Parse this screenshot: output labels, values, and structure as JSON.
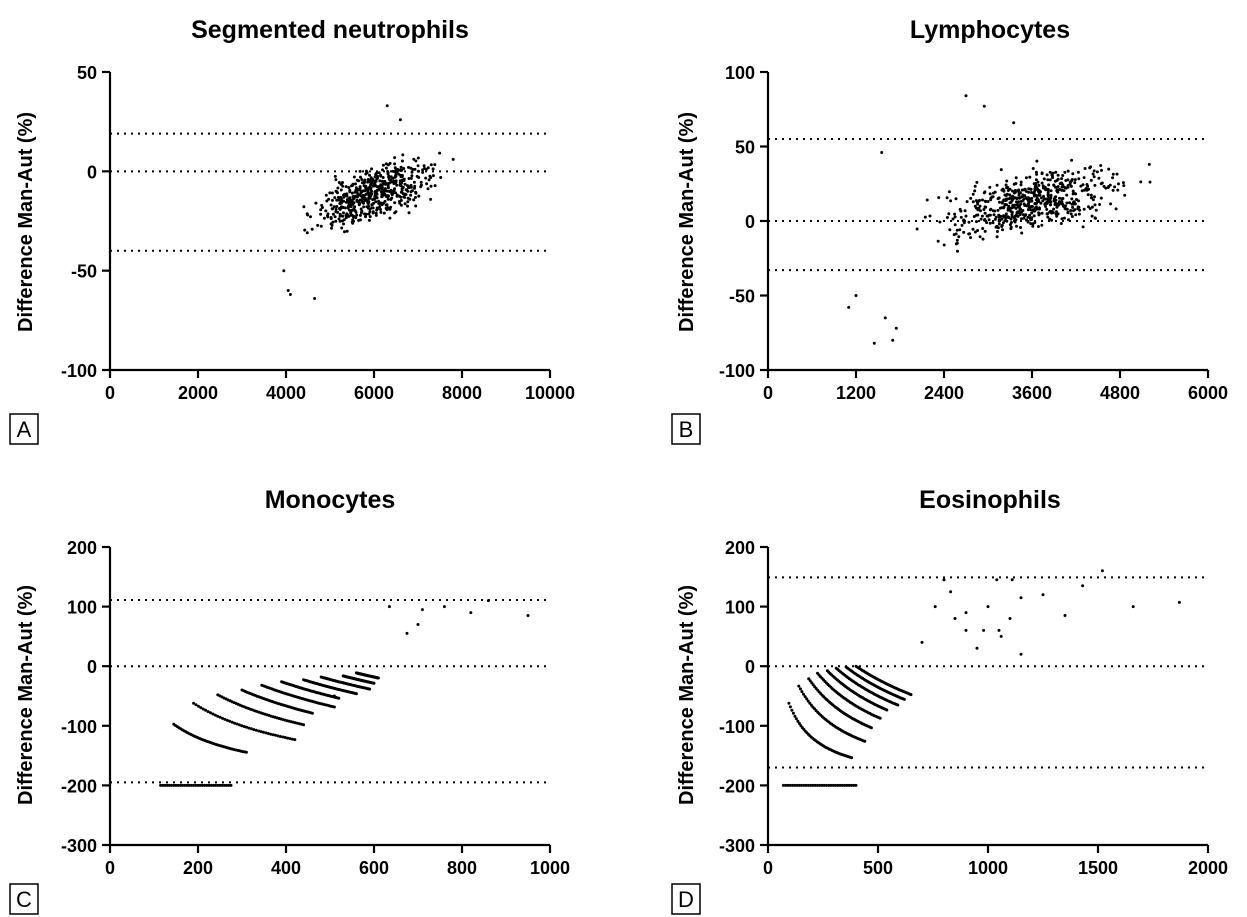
{
  "chart_data": [
    {
      "type": "scatter",
      "panel": "A",
      "title": "Segmented neutrophils",
      "xlabel": "",
      "ylabel": "Difference Man-Aut (%)",
      "xlim": [
        0,
        10000
      ],
      "ylim": [
        -100,
        50
      ],
      "xticks": [
        "0",
        "2000",
        "4000",
        "6000",
        "8000",
        "10000"
      ],
      "yticks": [
        "-100",
        "-50",
        "0",
        "50"
      ],
      "reference_lines": [
        19,
        0,
        -40
      ],
      "cluster": {
        "x_range": [
          3800,
          7800
        ],
        "y_center_left": -28,
        "y_center_right": 2,
        "y_spread": 12,
        "n": 560
      },
      "outliers": [
        [
          4050,
          -60
        ],
        [
          4100,
          -62
        ],
        [
          4650,
          -64
        ],
        [
          3950,
          -50
        ],
        [
          6300,
          33
        ],
        [
          6600,
          26
        ],
        [
          7800,
          6
        ]
      ]
    },
    {
      "type": "scatter",
      "panel": "B",
      "title": "Lymphocytes",
      "xlabel": "",
      "ylabel": "Difference Man-Aut (%)",
      "xlim": [
        0,
        6000
      ],
      "ylim": [
        -100,
        100
      ],
      "xticks": [
        "0",
        "1200",
        "2400",
        "3600",
        "4800",
        "6000"
      ],
      "yticks": [
        "-100",
        "-50",
        "0",
        "50",
        "100"
      ],
      "reference_lines": [
        55,
        0,
        -33
      ],
      "cluster": {
        "x_range": [
          1500,
          5300
        ],
        "y_center_left": -8,
        "y_center_right": 30,
        "y_spread": 18,
        "n": 600
      },
      "outliers": [
        [
          1100,
          -58
        ],
        [
          1200,
          -50
        ],
        [
          1450,
          -82
        ],
        [
          1700,
          -80
        ],
        [
          1750,
          -72
        ],
        [
          1600,
          -65
        ],
        [
          2700,
          84
        ],
        [
          2950,
          77
        ],
        [
          3350,
          66
        ],
        [
          1550,
          46
        ],
        [
          5200,
          38
        ]
      ]
    },
    {
      "type": "scatter",
      "panel": "C",
      "title": "Monocytes",
      "xlabel": "",
      "ylabel": "Difference Man-Aut (%)",
      "xlim": [
        0,
        1000
      ],
      "ylim": [
        -300,
        200
      ],
      "xticks": [
        "0",
        "200",
        "400",
        "600",
        "800",
        "1000"
      ],
      "yticks": [
        "-300",
        "-200",
        "-100",
        "0",
        "100",
        "200"
      ],
      "reference_lines": [
        111,
        0,
        -195
      ],
      "arcs": [
        {
          "k": 100,
          "x_range": [
            145,
            310
          ]
        },
        {
          "k": 200,
          "x_range": [
            190,
            420
          ]
        },
        {
          "k": 300,
          "x_range": [
            245,
            440
          ]
        },
        {
          "k": 400,
          "x_range": [
            300,
            460
          ]
        },
        {
          "k": 500,
          "x_range": [
            345,
            510
          ]
        },
        {
          "k": 600,
          "x_range": [
            390,
            520
          ]
        },
        {
          "k": 700,
          "x_range": [
            440,
            560
          ]
        },
        {
          "k": 800,
          "x_range": [
            480,
            590
          ]
        },
        {
          "k": 900,
          "x_range": [
            530,
            600
          ]
        },
        {
          "k": 1000,
          "x_range": [
            560,
            610
          ]
        }
      ],
      "floor": {
        "y": -200,
        "x_range": [
          115,
          275
        ]
      },
      "outliers": [
        [
          635,
          100
        ],
        [
          675,
          55
        ],
        [
          700,
          70
        ],
        [
          710,
          95
        ],
        [
          760,
          100
        ],
        [
          820,
          90
        ],
        [
          860,
          110
        ],
        [
          950,
          85
        ],
        [
          510,
          -50
        ]
      ]
    },
    {
      "type": "scatter",
      "panel": "D",
      "title": "Eosinophils",
      "xlabel": "",
      "ylabel": "Difference Man-Aut (%)",
      "xlim": [
        0,
        2000
      ],
      "ylim": [
        -300,
        200
      ],
      "xticks": [
        "0",
        "500",
        "1000",
        "1500",
        "2000"
      ],
      "yticks": [
        "-300",
        "-200",
        "-100",
        "0",
        "100",
        "200"
      ],
      "reference_lines": [
        149,
        0,
        -170
      ],
      "arcs": [
        {
          "k": 100,
          "x_range": [
            95,
            380
          ]
        },
        {
          "k": 200,
          "x_range": [
            140,
            440
          ]
        },
        {
          "k": 300,
          "x_range": [
            185,
            470
          ]
        },
        {
          "k": 400,
          "x_range": [
            225,
            510
          ]
        },
        {
          "k": 500,
          "x_range": [
            270,
            540
          ]
        },
        {
          "k": 600,
          "x_range": [
            310,
            590
          ]
        },
        {
          "k": 700,
          "x_range": [
            355,
            620
          ]
        },
        {
          "k": 800,
          "x_range": [
            400,
            650
          ]
        }
      ],
      "floor": {
        "y": -200,
        "x_range": [
          70,
          400
        ]
      },
      "outliers": [
        [
          700,
          40
        ],
        [
          760,
          100
        ],
        [
          800,
          145
        ],
        [
          850,
          80
        ],
        [
          900,
          60
        ],
        [
          950,
          30
        ],
        [
          1000,
          100
        ],
        [
          1050,
          60
        ],
        [
          1100,
          80
        ],
        [
          1150,
          115
        ],
        [
          1250,
          120
        ],
        [
          1350,
          85
        ],
        [
          1430,
          135
        ],
        [
          1520,
          160
        ],
        [
          1660,
          100
        ],
        [
          1870,
          107
        ],
        [
          980,
          60
        ],
        [
          1060,
          50
        ],
        [
          1150,
          20
        ],
        [
          900,
          90
        ],
        [
          830,
          125
        ],
        [
          1040,
          145
        ],
        [
          1110,
          145
        ]
      ]
    }
  ],
  "panel_letters": [
    "A",
    "B",
    "C",
    "D"
  ]
}
